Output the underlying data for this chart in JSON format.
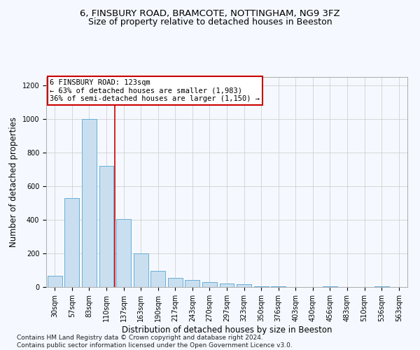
{
  "title_line1": "6, FINSBURY ROAD, BRAMCOTE, NOTTINGHAM, NG9 3FZ",
  "title_line2": "Size of property relative to detached houses in Beeston",
  "xlabel": "Distribution of detached houses by size in Beeston",
  "ylabel": "Number of detached properties",
  "bar_color": "#c9dff0",
  "bar_edge_color": "#6aaed6",
  "categories": [
    "30sqm",
    "57sqm",
    "83sqm",
    "110sqm",
    "137sqm",
    "163sqm",
    "190sqm",
    "217sqm",
    "243sqm",
    "270sqm",
    "297sqm",
    "323sqm",
    "350sqm",
    "376sqm",
    "403sqm",
    "430sqm",
    "456sqm",
    "483sqm",
    "510sqm",
    "536sqm",
    "563sqm"
  ],
  "values": [
    65,
    530,
    1000,
    720,
    405,
    200,
    95,
    55,
    40,
    30,
    20,
    15,
    5,
    5,
    0,
    0,
    5,
    0,
    0,
    5,
    0
  ],
  "ylim": [
    0,
    1250
  ],
  "yticks": [
    0,
    200,
    400,
    600,
    800,
    1000,
    1200
  ],
  "vline_x": 3.5,
  "vline_color": "#cc0000",
  "annotation_text": "6 FINSBURY ROAD: 123sqm\n← 63% of detached houses are smaller (1,983)\n36% of semi-detached houses are larger (1,150) →",
  "annotation_box_color": "#ffffff",
  "annotation_box_edge": "#cc0000",
  "grid_color": "#d0d0d0",
  "background_color": "#f5f9ff",
  "footer_text": "Contains HM Land Registry data © Crown copyright and database right 2024.\nContains public sector information licensed under the Open Government Licence v3.0.",
  "title_fontsize": 9.5,
  "subtitle_fontsize": 9,
  "label_fontsize": 8.5,
  "tick_fontsize": 7,
  "footer_fontsize": 6.5,
  "annot_fontsize": 7.5
}
